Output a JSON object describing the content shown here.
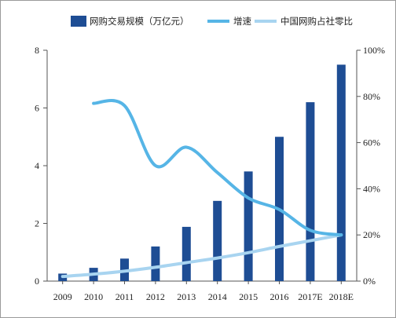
{
  "chart_data": {
    "type": "bar",
    "categories": [
      "2009",
      "2010",
      "2011",
      "2012",
      "2013",
      "2014",
      "2015",
      "2016",
      "2017E",
      "2018E"
    ],
    "series": [
      {
        "name": "网购交易规模（万亿元）",
        "kind": "bar",
        "axis": "left",
        "values": [
          0.26,
          0.46,
          0.78,
          1.2,
          1.88,
          2.78,
          3.8,
          5.0,
          6.2,
          7.5
        ]
      },
      {
        "name": "增速",
        "kind": "line",
        "axis": "right",
        "values": [
          null,
          0.77,
          0.76,
          0.5,
          0.58,
          0.47,
          0.36,
          0.31,
          0.22,
          0.2
        ]
      },
      {
        "name": "中国网购占社零比",
        "kind": "line",
        "axis": "right",
        "values": [
          0.02,
          0.03,
          0.043,
          0.06,
          0.08,
          0.1,
          0.123,
          0.15,
          0.175,
          0.2
        ]
      }
    ],
    "yleft": {
      "ylim": [
        0,
        8
      ],
      "ticks": [
        "0",
        "2",
        "4",
        "6",
        "8"
      ]
    },
    "yright": {
      "ylim": [
        0,
        1
      ],
      "ticks": [
        "0%",
        "20%",
        "40%",
        "60%",
        "80%",
        "100%"
      ]
    },
    "legend_placement": "top",
    "grid": false,
    "colors": {
      "bar": "#1e4d94",
      "growth_line": "#56b5e6",
      "share_line": "#a8d4f0"
    }
  }
}
